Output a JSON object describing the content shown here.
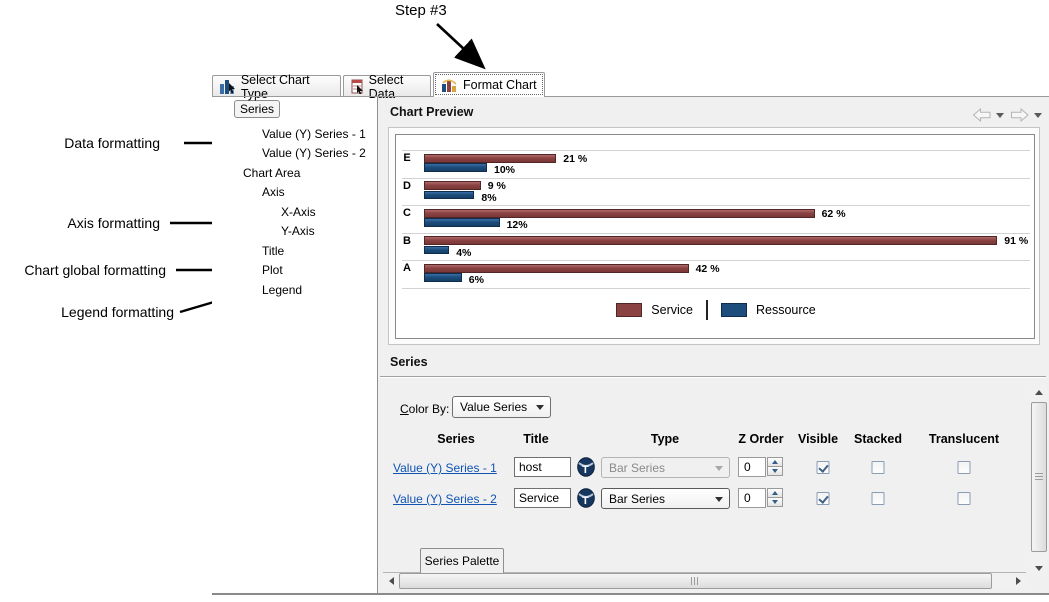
{
  "annotations": {
    "step_label": "Step #3",
    "data_formatting": "Data formatting",
    "axis_formatting": "Axis formatting",
    "chart_global_formatting": "Chart global formatting",
    "legend_formatting": "Legend formatting"
  },
  "tabs": [
    {
      "label": "Select Chart Type",
      "icon": "chart-type-icon",
      "active": false
    },
    {
      "label": "Select Data",
      "icon": "select-data-icon",
      "active": false
    },
    {
      "label": "Format Chart",
      "icon": "format-chart-icon",
      "active": true
    }
  ],
  "tree": {
    "items": [
      {
        "label": "Series",
        "level": 0,
        "selected": true
      },
      {
        "label": "Value (Y) Series - 1",
        "level": 1
      },
      {
        "label": "Value (Y) Series - 2",
        "level": 1
      },
      {
        "label": "Chart Area",
        "level": 0
      },
      {
        "label": "Axis",
        "level": 1
      },
      {
        "label": "X-Axis",
        "level": 2
      },
      {
        "label": "Y-Axis",
        "level": 2
      },
      {
        "label": "Title",
        "level": 1
      },
      {
        "label": "Plot",
        "level": 1
      },
      {
        "label": "Legend",
        "level": 1
      }
    ]
  },
  "preview": {
    "title": "Chart Preview"
  },
  "chart_data": {
    "type": "bar",
    "orientation": "horizontal",
    "categories": [
      "E",
      "D",
      "C",
      "B",
      "A"
    ],
    "series": [
      {
        "name": "Service",
        "color": "#8b4242",
        "values": [
          21,
          9,
          62,
          91,
          42
        ],
        "labels": [
          "21 %",
          "9 %",
          "62 %",
          "91 %",
          "42 %"
        ]
      },
      {
        "name": "Ressource",
        "color": "#1c4d7d",
        "values": [
          10,
          8,
          12,
          4,
          6
        ],
        "labels": [
          "10%",
          "8%",
          "12%",
          "4%",
          "6%"
        ]
      }
    ],
    "xlim": [
      0,
      100
    ],
    "value_unit": "%",
    "legend_position": "bottom",
    "gridlines": true
  },
  "series_section": {
    "title": "Series",
    "color_by_label": "Color By:",
    "color_by_value": "Value Series",
    "columns": [
      "Series",
      "Title",
      "Type",
      "Z Order",
      "Visible",
      "Stacked",
      "Translucent"
    ],
    "rows": [
      {
        "series_link": "Value (Y) Series - 1",
        "title_value": "host",
        "type_value": "Bar Series",
        "type_enabled": false,
        "z_order": "0",
        "visible": true,
        "stacked": false,
        "translucent": false
      },
      {
        "series_link": "Value (Y) Series - 2",
        "title_value": "Service",
        "type_value": "Bar Series",
        "type_enabled": true,
        "z_order": "0",
        "visible": true,
        "stacked": false,
        "translucent": false
      }
    ],
    "palette_tab_label": "Series Palette"
  },
  "colors": {
    "service": "#8b4242",
    "ressource": "#1c4d7d",
    "link": "#1054b4",
    "panel": "#f0f0f0"
  }
}
